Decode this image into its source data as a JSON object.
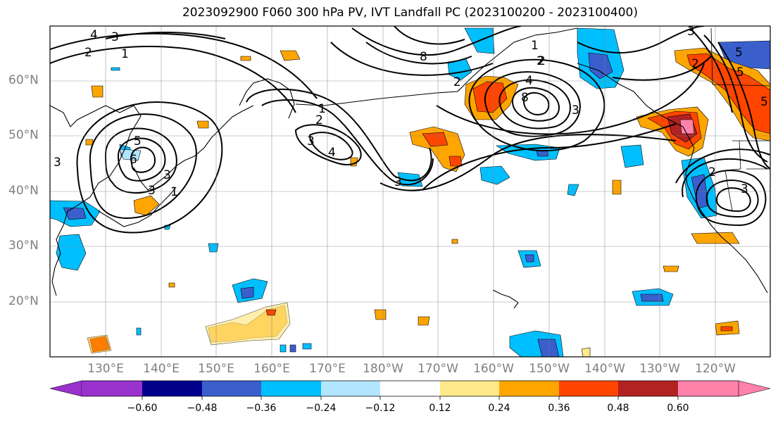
{
  "title": "2023092900 F060 300 hPa PV, IVT Landfall PC (2023100200 - 2023100400)",
  "lat_labels": [
    "60°N",
    "50°N",
    "40°N",
    "30°N",
    "20°N"
  ],
  "lon_labels": [
    "130°E",
    "140°E",
    "150°E",
    "160°E",
    "170°E",
    "180°W",
    "170°W",
    "160°W",
    "150°W",
    "140°W",
    "130°W",
    "120°W"
  ],
  "contour_labels": [
    "4",
    "3",
    "2",
    "1",
    "8",
    "2",
    "1",
    "5",
    "6",
    "3",
    "3",
    "1",
    "3",
    "4",
    "3",
    "2",
    "1",
    "2",
    "4",
    "8",
    "3",
    "3",
    "2",
    "5",
    "5",
    "2",
    "5",
    "3",
    "3",
    "2"
  ],
  "colorbar": {
    "ticks": [
      "−0.60",
      "−0.48",
      "−0.36",
      "−0.24",
      "−0.12",
      "0.12",
      "0.24",
      "0.36",
      "0.48",
      "0.60"
    ],
    "colors": [
      "#9932cc",
      "#00008b",
      "#3a5fcd",
      "#00bfff",
      "#b2e5ff",
      "#ffffff",
      "#ffe98a",
      "#ffa500",
      "#ff4500",
      "#b22222",
      "#ff82ab"
    ]
  }
}
